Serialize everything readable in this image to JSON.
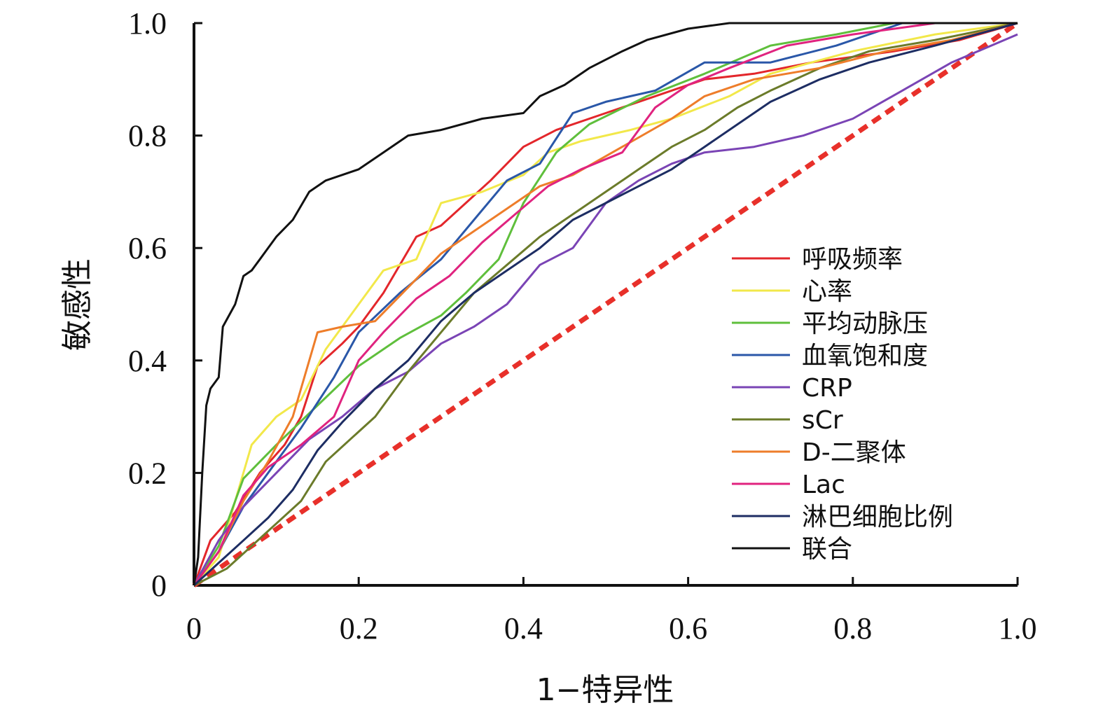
{
  "chart_data": {
    "type": "line",
    "title": "",
    "xlabel": "1−特异性",
    "ylabel": "敏感性",
    "xlim": [
      0,
      1
    ],
    "ylim": [
      0,
      1
    ],
    "xticks": [
      0,
      0.2,
      0.4,
      0.6,
      0.8,
      1.0
    ],
    "yticks": [
      0,
      0.2,
      0.4,
      0.6,
      0.8,
      1.0
    ],
    "xtick_labels": [
      "0",
      "0.2",
      "0.4",
      "0.6",
      "0.8",
      "1.0"
    ],
    "ytick_labels": [
      "0",
      "0.2",
      "0.4",
      "0.6",
      "0.8",
      "1.0"
    ],
    "grid": false,
    "legend_position": "right",
    "reference_line": {
      "color": "#e8302a",
      "style": "dashed",
      "points": [
        [
          0,
          0
        ],
        [
          1,
          1
        ]
      ]
    },
    "series": [
      {
        "name": "呼吸频率",
        "color": "#e3262b",
        "points": [
          [
            0,
            0
          ],
          [
            0.02,
            0.08
          ],
          [
            0.05,
            0.13
          ],
          [
            0.08,
            0.2
          ],
          [
            0.11,
            0.25
          ],
          [
            0.13,
            0.3
          ],
          [
            0.15,
            0.39
          ],
          [
            0.18,
            0.43
          ],
          [
            0.2,
            0.46
          ],
          [
            0.23,
            0.52
          ],
          [
            0.25,
            0.57
          ],
          [
            0.27,
            0.62
          ],
          [
            0.3,
            0.64
          ],
          [
            0.33,
            0.68
          ],
          [
            0.36,
            0.72
          ],
          [
            0.4,
            0.78
          ],
          [
            0.44,
            0.81
          ],
          [
            0.5,
            0.84
          ],
          [
            0.56,
            0.87
          ],
          [
            0.62,
            0.9
          ],
          [
            0.68,
            0.91
          ],
          [
            0.75,
            0.93
          ],
          [
            0.85,
            0.95
          ],
          [
            0.93,
            0.97
          ],
          [
            1,
            1
          ]
        ]
      },
      {
        "name": "心率",
        "color": "#f2e84a",
        "points": [
          [
            0,
            0
          ],
          [
            0.03,
            0.05
          ],
          [
            0.05,
            0.15
          ],
          [
            0.07,
            0.25
          ],
          [
            0.1,
            0.3
          ],
          [
            0.13,
            0.33
          ],
          [
            0.16,
            0.42
          ],
          [
            0.2,
            0.5
          ],
          [
            0.23,
            0.56
          ],
          [
            0.27,
            0.58
          ],
          [
            0.3,
            0.68
          ],
          [
            0.35,
            0.7
          ],
          [
            0.4,
            0.73
          ],
          [
            0.43,
            0.77
          ],
          [
            0.47,
            0.79
          ],
          [
            0.53,
            0.81
          ],
          [
            0.58,
            0.83
          ],
          [
            0.65,
            0.87
          ],
          [
            0.7,
            0.91
          ],
          [
            0.8,
            0.95
          ],
          [
            0.9,
            0.98
          ],
          [
            1,
            1
          ]
        ]
      },
      {
        "name": "平均动脉压",
        "color": "#5fbf3c",
        "points": [
          [
            0,
            0
          ],
          [
            0.03,
            0.07
          ],
          [
            0.06,
            0.19
          ],
          [
            0.1,
            0.25
          ],
          [
            0.15,
            0.32
          ],
          [
            0.2,
            0.39
          ],
          [
            0.25,
            0.44
          ],
          [
            0.3,
            0.48
          ],
          [
            0.33,
            0.52
          ],
          [
            0.37,
            0.58
          ],
          [
            0.4,
            0.68
          ],
          [
            0.44,
            0.77
          ],
          [
            0.48,
            0.82
          ],
          [
            0.55,
            0.87
          ],
          [
            0.62,
            0.91
          ],
          [
            0.7,
            0.96
          ],
          [
            0.78,
            0.98
          ],
          [
            0.85,
            1
          ],
          [
            1,
            1
          ]
        ]
      },
      {
        "name": "血氧饱和度",
        "color": "#2a57a8",
        "points": [
          [
            0,
            0
          ],
          [
            0.03,
            0.06
          ],
          [
            0.06,
            0.14
          ],
          [
            0.1,
            0.22
          ],
          [
            0.13,
            0.28
          ],
          [
            0.17,
            0.37
          ],
          [
            0.2,
            0.45
          ],
          [
            0.25,
            0.52
          ],
          [
            0.3,
            0.58
          ],
          [
            0.34,
            0.65
          ],
          [
            0.38,
            0.72
          ],
          [
            0.42,
            0.75
          ],
          [
            0.46,
            0.84
          ],
          [
            0.5,
            0.86
          ],
          [
            0.56,
            0.88
          ],
          [
            0.62,
            0.93
          ],
          [
            0.7,
            0.93
          ],
          [
            0.78,
            0.96
          ],
          [
            0.86,
            1
          ],
          [
            1,
            1
          ]
        ]
      },
      {
        "name": "CRP",
        "color": "#7a44b5",
        "points": [
          [
            0,
            0
          ],
          [
            0.03,
            0.08
          ],
          [
            0.06,
            0.14
          ],
          [
            0.1,
            0.2
          ],
          [
            0.14,
            0.26
          ],
          [
            0.18,
            0.3
          ],
          [
            0.22,
            0.35
          ],
          [
            0.26,
            0.38
          ],
          [
            0.3,
            0.43
          ],
          [
            0.34,
            0.46
          ],
          [
            0.38,
            0.5
          ],
          [
            0.42,
            0.57
          ],
          [
            0.46,
            0.6
          ],
          [
            0.5,
            0.68
          ],
          [
            0.54,
            0.72
          ],
          [
            0.58,
            0.75
          ],
          [
            0.62,
            0.77
          ],
          [
            0.68,
            0.78
          ],
          [
            0.74,
            0.8
          ],
          [
            0.8,
            0.83
          ],
          [
            0.86,
            0.88
          ],
          [
            0.92,
            0.93
          ],
          [
            1,
            0.98
          ]
        ]
      },
      {
        "name": "sCr",
        "color": "#6b7b2a",
        "points": [
          [
            0,
            0
          ],
          [
            0.04,
            0.03
          ],
          [
            0.07,
            0.07
          ],
          [
            0.1,
            0.11
          ],
          [
            0.13,
            0.15
          ],
          [
            0.16,
            0.22
          ],
          [
            0.19,
            0.26
          ],
          [
            0.22,
            0.3
          ],
          [
            0.26,
            0.38
          ],
          [
            0.3,
            0.45
          ],
          [
            0.34,
            0.52
          ],
          [
            0.38,
            0.57
          ],
          [
            0.42,
            0.62
          ],
          [
            0.46,
            0.66
          ],
          [
            0.5,
            0.7
          ],
          [
            0.54,
            0.74
          ],
          [
            0.58,
            0.78
          ],
          [
            0.62,
            0.81
          ],
          [
            0.66,
            0.85
          ],
          [
            0.7,
            0.88
          ],
          [
            0.76,
            0.92
          ],
          [
            0.82,
            0.95
          ],
          [
            0.9,
            0.97
          ],
          [
            1,
            1
          ]
        ]
      },
      {
        "name": "D-二聚体",
        "color": "#ee7d2a",
        "points": [
          [
            0,
            0
          ],
          [
            0.03,
            0.06
          ],
          [
            0.06,
            0.15
          ],
          [
            0.09,
            0.22
          ],
          [
            0.12,
            0.3
          ],
          [
            0.15,
            0.45
          ],
          [
            0.18,
            0.46
          ],
          [
            0.22,
            0.47
          ],
          [
            0.26,
            0.53
          ],
          [
            0.3,
            0.59
          ],
          [
            0.34,
            0.63
          ],
          [
            0.38,
            0.67
          ],
          [
            0.42,
            0.71
          ],
          [
            0.46,
            0.73
          ],
          [
            0.52,
            0.78
          ],
          [
            0.58,
            0.83
          ],
          [
            0.62,
            0.87
          ],
          [
            0.68,
            0.9
          ],
          [
            0.76,
            0.92
          ],
          [
            0.84,
            0.95
          ],
          [
            0.92,
            0.97
          ],
          [
            1,
            1
          ]
        ]
      },
      {
        "name": "Lac",
        "color": "#e0237f",
        "points": [
          [
            0,
            0
          ],
          [
            0.03,
            0.06
          ],
          [
            0.06,
            0.16
          ],
          [
            0.09,
            0.21
          ],
          [
            0.13,
            0.25
          ],
          [
            0.17,
            0.3
          ],
          [
            0.2,
            0.4
          ],
          [
            0.23,
            0.45
          ],
          [
            0.27,
            0.51
          ],
          [
            0.31,
            0.55
          ],
          [
            0.35,
            0.61
          ],
          [
            0.39,
            0.66
          ],
          [
            0.43,
            0.71
          ],
          [
            0.47,
            0.74
          ],
          [
            0.52,
            0.77
          ],
          [
            0.56,
            0.85
          ],
          [
            0.6,
            0.89
          ],
          [
            0.65,
            0.92
          ],
          [
            0.72,
            0.96
          ],
          [
            0.8,
            0.98
          ],
          [
            0.9,
            1
          ],
          [
            1,
            1
          ]
        ]
      },
      {
        "name": "淋巴细胞比例",
        "color": "#1d2d63",
        "points": [
          [
            0,
            0
          ],
          [
            0.03,
            0.04
          ],
          [
            0.06,
            0.08
          ],
          [
            0.09,
            0.12
          ],
          [
            0.12,
            0.17
          ],
          [
            0.15,
            0.24
          ],
          [
            0.18,
            0.29
          ],
          [
            0.22,
            0.35
          ],
          [
            0.26,
            0.4
          ],
          [
            0.3,
            0.47
          ],
          [
            0.34,
            0.52
          ],
          [
            0.38,
            0.56
          ],
          [
            0.42,
            0.6
          ],
          [
            0.46,
            0.65
          ],
          [
            0.5,
            0.68
          ],
          [
            0.54,
            0.71
          ],
          [
            0.58,
            0.74
          ],
          [
            0.62,
            0.78
          ],
          [
            0.66,
            0.82
          ],
          [
            0.7,
            0.86
          ],
          [
            0.76,
            0.9
          ],
          [
            0.82,
            0.93
          ],
          [
            0.9,
            0.96
          ],
          [
            1,
            1
          ]
        ]
      },
      {
        "name": "联合",
        "color": "#111111",
        "points": [
          [
            0,
            0
          ],
          [
            0.005,
            0.05
          ],
          [
            0.01,
            0.2
          ],
          [
            0.015,
            0.32
          ],
          [
            0.02,
            0.35
          ],
          [
            0.03,
            0.37
          ],
          [
            0.035,
            0.46
          ],
          [
            0.05,
            0.5
          ],
          [
            0.06,
            0.55
          ],
          [
            0.07,
            0.56
          ],
          [
            0.08,
            0.58
          ],
          [
            0.09,
            0.6
          ],
          [
            0.1,
            0.62
          ],
          [
            0.12,
            0.65
          ],
          [
            0.14,
            0.7
          ],
          [
            0.16,
            0.72
          ],
          [
            0.18,
            0.73
          ],
          [
            0.2,
            0.74
          ],
          [
            0.23,
            0.77
          ],
          [
            0.26,
            0.8
          ],
          [
            0.3,
            0.81
          ],
          [
            0.35,
            0.83
          ],
          [
            0.4,
            0.84
          ],
          [
            0.42,
            0.87
          ],
          [
            0.45,
            0.89
          ],
          [
            0.48,
            0.92
          ],
          [
            0.52,
            0.95
          ],
          [
            0.55,
            0.97
          ],
          [
            0.6,
            0.99
          ],
          [
            0.65,
            1
          ],
          [
            1,
            1
          ]
        ]
      }
    ]
  }
}
